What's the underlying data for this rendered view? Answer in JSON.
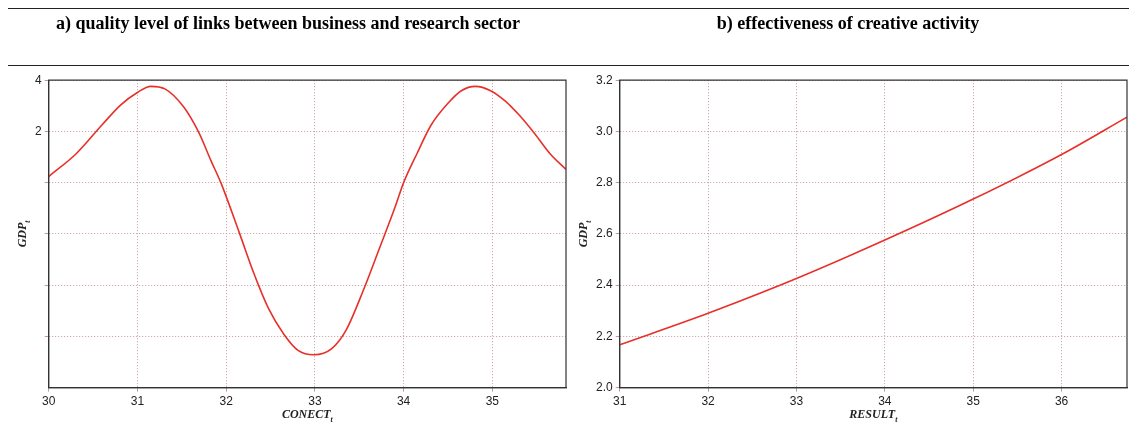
{
  "chart_data": [
    {
      "type": "line",
      "title": "a) quality level of links between business and research sector",
      "xlabel": "CONECT$_{t}$",
      "ylabel": "GDP$_{t}$",
      "series": [
        {
          "color": "#e8302a",
          "x": [
            30,
            30.31,
            30.6,
            30.81,
            31.0,
            31.15,
            31.31,
            31.52,
            31.69,
            31.83,
            31.94,
            32.15,
            32.31,
            32.48,
            32.65,
            32.81,
            32.99,
            33.19,
            33.35,
            33.56,
            33.73,
            33.9,
            34.0,
            34.15,
            34.31,
            34.5,
            34.65,
            34.81,
            34.98,
            35.15,
            35.31,
            35.48,
            35.65,
            35.83
          ],
          "values": [
            0.24,
            1.13,
            2.25,
            3.03,
            3.52,
            3.76,
            3.66,
            2.96,
            1.97,
            0.85,
            0,
            -1.97,
            -3.52,
            -4.93,
            -5.92,
            -6.55,
            -6.72,
            -6.48,
            -5.77,
            -4.08,
            -2.54,
            -0.99,
            0,
            1.13,
            2.25,
            3.1,
            3.59,
            3.76,
            3.59,
            3.17,
            2.61,
            1.9,
            1.13,
            0.52
          ]
        }
      ],
      "xlim": [
        30,
        35.83
      ],
      "xticks": [
        30,
        31,
        32,
        33,
        34,
        35
      ],
      "ylim": [
        -8,
        4
      ],
      "yticks": [
        4,
        2,
        {
          "value": 0,
          "label": null
        },
        {
          "value": -2,
          "label": null
        },
        {
          "value": -4,
          "label": null
        },
        {
          "value": -6,
          "label": null
        }
      ],
      "grid": true,
      "marker": "none",
      "line_style": "solid"
    },
    {
      "type": "line",
      "title": "b) effectiveness of creative activity",
      "xlabel": "RESULT$_{t}$",
      "ylabel": "GDP$_{t}$",
      "series": [
        {
          "color": "#e8302a",
          "x": [
            31,
            32,
            33,
            34,
            35,
            36,
            36.74
          ],
          "values": [
            2.167,
            2.29,
            2.426,
            2.576,
            2.736,
            2.91,
            3.056
          ]
        }
      ],
      "xlim": [
        31,
        36.74
      ],
      "xticks": [
        31,
        32,
        33,
        34,
        35,
        36
      ],
      "ylim": [
        2.0,
        3.2
      ],
      "yticks": [
        {
          "value": 2.0,
          "label": "2.0"
        },
        {
          "value": 2.2,
          "label": "2.2"
        },
        {
          "value": 2.4,
          "label": "2.4"
        },
        {
          "value": 2.6,
          "label": "2.6"
        },
        {
          "value": 2.8,
          "label": "2.8"
        },
        {
          "value": 3.0,
          "label": "3.0"
        },
        {
          "value": 3.2,
          "label": "3.2"
        }
      ],
      "grid": true,
      "marker": "none",
      "line_style": "solid"
    }
  ]
}
